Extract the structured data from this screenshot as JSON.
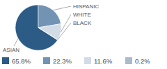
{
  "chart_data": {
    "type": "pie",
    "categories": [
      "ASIAN",
      "HISPANIC",
      "WHITE",
      "BLACK"
    ],
    "values": [
      65.8,
      22.3,
      11.6,
      0.2
    ],
    "value_labels": [
      "65.8%",
      "22.3%",
      "11.6%",
      "0.2%"
    ],
    "colors": [
      "#2c5b86",
      "#7293b4",
      "#d2dce7",
      "#a9bbcd"
    ],
    "legend": "bottom"
  }
}
